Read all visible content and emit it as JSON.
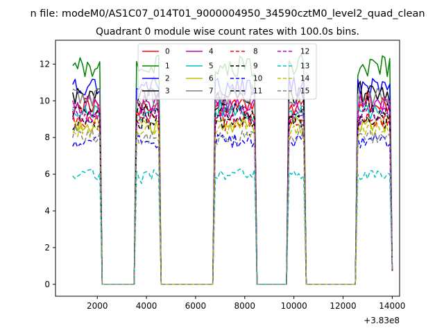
{
  "chart_data": {
    "type": "line",
    "suptitle": "n file: modeM0/AS1C07_014T01_9000004950_34590cztM0_level2_quad_clean",
    "title": "Quadrant 0 module wise count rates with 100.0s bins.",
    "xlabel": "",
    "ylabel": "",
    "x_offset_label": "+3.83e8",
    "xlim": [
      300,
      14300
    ],
    "ylim": [
      -0.65,
      13.3
    ],
    "xticks": [
      2000,
      4000,
      6000,
      8000,
      10000,
      12000,
      14000
    ],
    "xtick_labels": [
      "2000",
      "4000",
      "6000",
      "8000",
      "10000",
      "12000",
      "14000"
    ],
    "yticks": [
      0,
      2,
      4,
      6,
      8,
      10,
      12
    ],
    "ytick_labels": [
      "0",
      "2",
      "4",
      "6",
      "8",
      "10",
      "12"
    ],
    "legend_position": "top-center",
    "time_window": {
      "x_start": 1000,
      "x_end": 14000,
      "bin_size": 100
    },
    "on_intervals": [
      [
        1000,
        2100
      ],
      [
        3600,
        4500
      ],
      [
        6800,
        8400
      ],
      [
        9800,
        10400
      ],
      [
        12600,
        13900
      ]
    ],
    "series": [
      {
        "name": "0",
        "color": "#ff0000",
        "dash": "solid",
        "level": 9.7
      },
      {
        "name": "1",
        "color": "#008000",
        "dash": "solid",
        "level": 11.9
      },
      {
        "name": "2",
        "color": "#0000ff",
        "dash": "solid",
        "level": 10.8
      },
      {
        "name": "3",
        "color": "#000000",
        "dash": "solid",
        "level": 10.3
      },
      {
        "name": "4",
        "color": "#bf00bf",
        "dash": "solid",
        "level": 9.8
      },
      {
        "name": "5",
        "color": "#00bfbf",
        "dash": "solid",
        "level": 9.3
      },
      {
        "name": "6",
        "color": "#bfbf00",
        "dash": "solid",
        "level": 8.7
      },
      {
        "name": "7",
        "color": "#808080",
        "dash": "solid",
        "level": 10.2
      },
      {
        "name": "8",
        "color": "#ff0000",
        "dash": "dashed",
        "level": 9.0
      },
      {
        "name": "9",
        "color": "#000000",
        "dash": "dashed",
        "level": 8.8
      },
      {
        "name": "10",
        "color": "#0000ff",
        "dash": "dashed",
        "level": 7.8
      },
      {
        "name": "11",
        "color": "#000000",
        "dash": "dashed",
        "level": 9.4
      },
      {
        "name": "12",
        "color": "#bf00bf",
        "dash": "dashed",
        "level": 9.2
      },
      {
        "name": "13",
        "color": "#00bfbf",
        "dash": "dashed",
        "level": 6.0
      },
      {
        "name": "14",
        "color": "#bfbf00",
        "dash": "dashed",
        "level": 8.4
      },
      {
        "name": "15",
        "color": "#808080",
        "dash": "dashed",
        "level": 8.0
      }
    ]
  }
}
